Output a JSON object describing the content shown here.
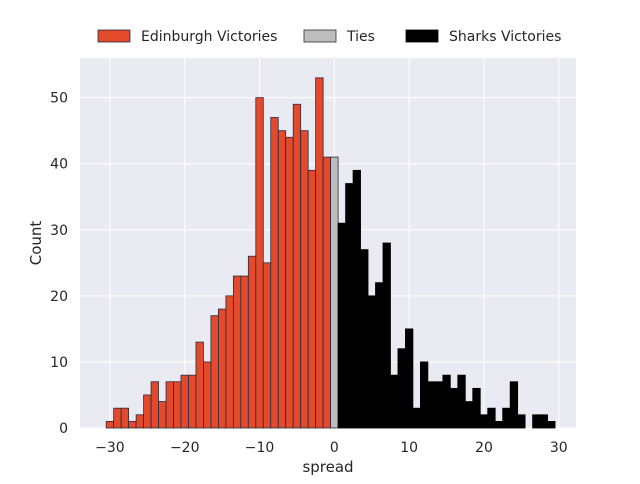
{
  "chart_data": {
    "type": "bar",
    "title": "",
    "xlabel": "spread",
    "ylabel": "Count",
    "xlim": [
      -34,
      32.3
    ],
    "ylim": [
      0,
      56
    ],
    "xticks": [
      -30,
      -20,
      -10,
      0,
      10,
      20,
      30
    ],
    "xtick_labels": [
      "−30",
      "−20",
      "−10",
      "0",
      "10",
      "20",
      "30"
    ],
    "yticks": [
      0,
      10,
      20,
      30,
      40,
      50
    ],
    "ytick_labels": [
      "0",
      "10",
      "20",
      "30",
      "40",
      "50"
    ],
    "grid": true,
    "legend_position": "top-center",
    "bin_width": 1,
    "series": [
      {
        "name": "Edinburgh Victories",
        "color": "#e34a2b",
        "edgecolor": "#2a2a40",
        "x": [
          -30,
          -29,
          -28,
          -27,
          -26,
          -25,
          -24,
          -23,
          -22,
          -21,
          -20,
          -19,
          -18,
          -17,
          -16,
          -15,
          -14,
          -13,
          -12,
          -11,
          -10,
          -9,
          -8,
          -7,
          -6,
          -5,
          -4,
          -3,
          -2,
          -1
        ],
        "values": [
          1,
          3,
          3,
          1,
          2,
          5,
          7,
          4,
          7,
          7,
          8,
          8,
          13,
          10,
          17,
          18,
          20,
          23,
          23,
          26,
          50,
          25,
          47,
          45,
          44,
          49,
          45,
          39,
          53,
          41
        ]
      },
      {
        "name": "Ties",
        "color": "#bdbdbd",
        "edgecolor": "#2a2a40",
        "x": [
          0
        ],
        "values": [
          41
        ]
      },
      {
        "name": "Sharks Victories",
        "color": "#000000",
        "edgecolor": "#000000",
        "x": [
          1,
          2,
          3,
          4,
          5,
          6,
          7,
          8,
          9,
          10,
          11,
          12,
          13,
          14,
          15,
          16,
          17,
          18,
          19,
          20,
          21,
          22,
          23,
          24,
          25,
          26,
          27,
          28,
          29
        ],
        "values": [
          31,
          37,
          39,
          27,
          20,
          22,
          28,
          8,
          12,
          15,
          3,
          10,
          7,
          7,
          8,
          6,
          8,
          4,
          6,
          2,
          3,
          1,
          3,
          7,
          2,
          0,
          2,
          2,
          1
        ]
      }
    ]
  }
}
